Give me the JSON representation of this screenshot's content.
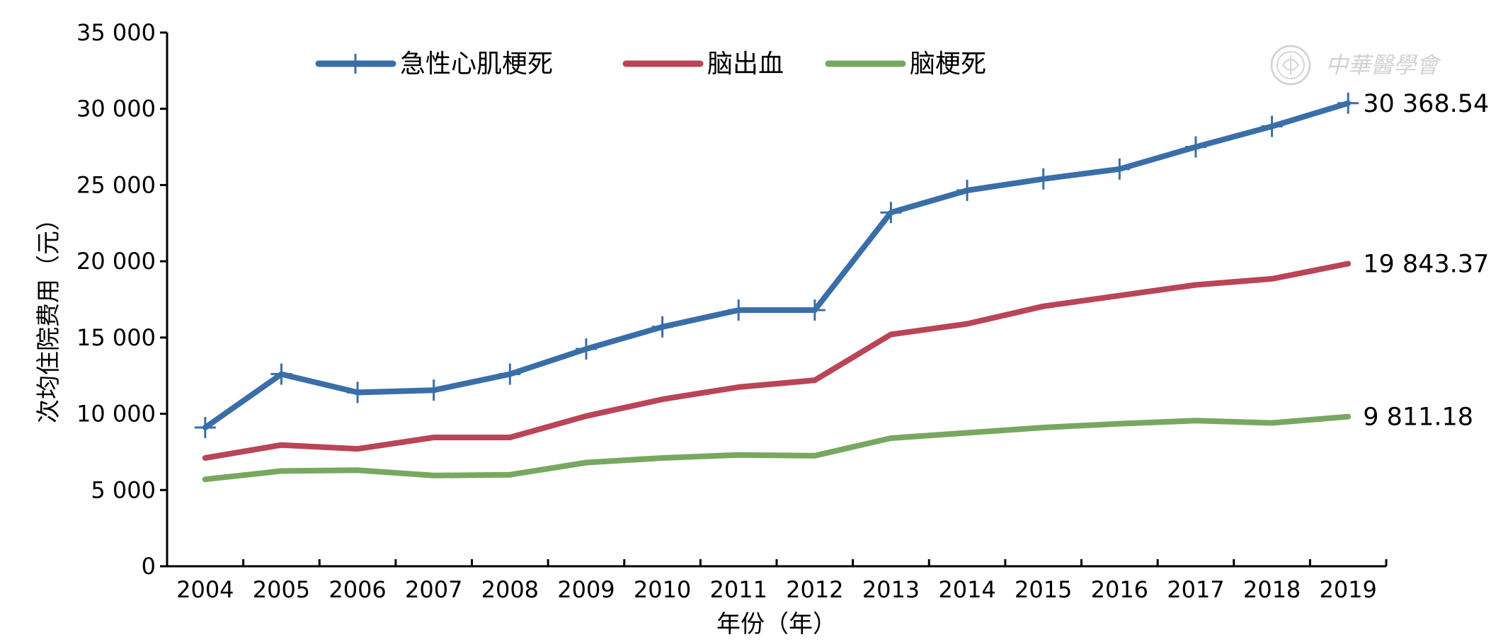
{
  "chart_data": {
    "type": "line",
    "title": "",
    "xlabel": "年份（年）",
    "ylabel": "次均住院费用（元）",
    "ylim": [
      0,
      35000
    ],
    "yticks": [
      0,
      5000,
      10000,
      15000,
      20000,
      25000,
      30000,
      35000
    ],
    "ytick_labels": [
      "0",
      "5 000",
      "10 000",
      "15 000",
      "20 000",
      "25 000",
      "30 000",
      "35 000"
    ],
    "categories": [
      "2004",
      "2005",
      "2006",
      "2007",
      "2008",
      "2009",
      "2010",
      "2011",
      "2012",
      "2013",
      "2014",
      "2015",
      "2016",
      "2017",
      "2018",
      "2019"
    ],
    "grid": false,
    "legend_position": "top",
    "series": [
      {
        "name": "急性心肌梗死",
        "color": "#3a6ea8",
        "marker": "plus",
        "values": [
          9100,
          12600,
          11400,
          11550,
          12600,
          14250,
          15700,
          16800,
          16800,
          23200,
          24650,
          25400,
          26050,
          27500,
          28850,
          30368.54
        ],
        "end_label": "30 368.54"
      },
      {
        "name": "脑出血",
        "color": "#b94557",
        "marker": "none",
        "values": [
          7100,
          7950,
          7700,
          8450,
          8450,
          9850,
          10950,
          11750,
          12200,
          15200,
          15900,
          17050,
          17750,
          18450,
          18850,
          19843.37
        ],
        "end_label": "19 843.37"
      },
      {
        "name": "脑梗死",
        "color": "#78a860",
        "marker": "none",
        "values": [
          5700,
          6250,
          6300,
          5950,
          6000,
          6800,
          7100,
          7300,
          7250,
          8400,
          8750,
          9100,
          9350,
          9550,
          9400,
          9811.18
        ],
        "end_label": "9 811.18"
      }
    ]
  },
  "watermark": {
    "text": "中華醫學會",
    "icon": "society-seal-icon"
  }
}
